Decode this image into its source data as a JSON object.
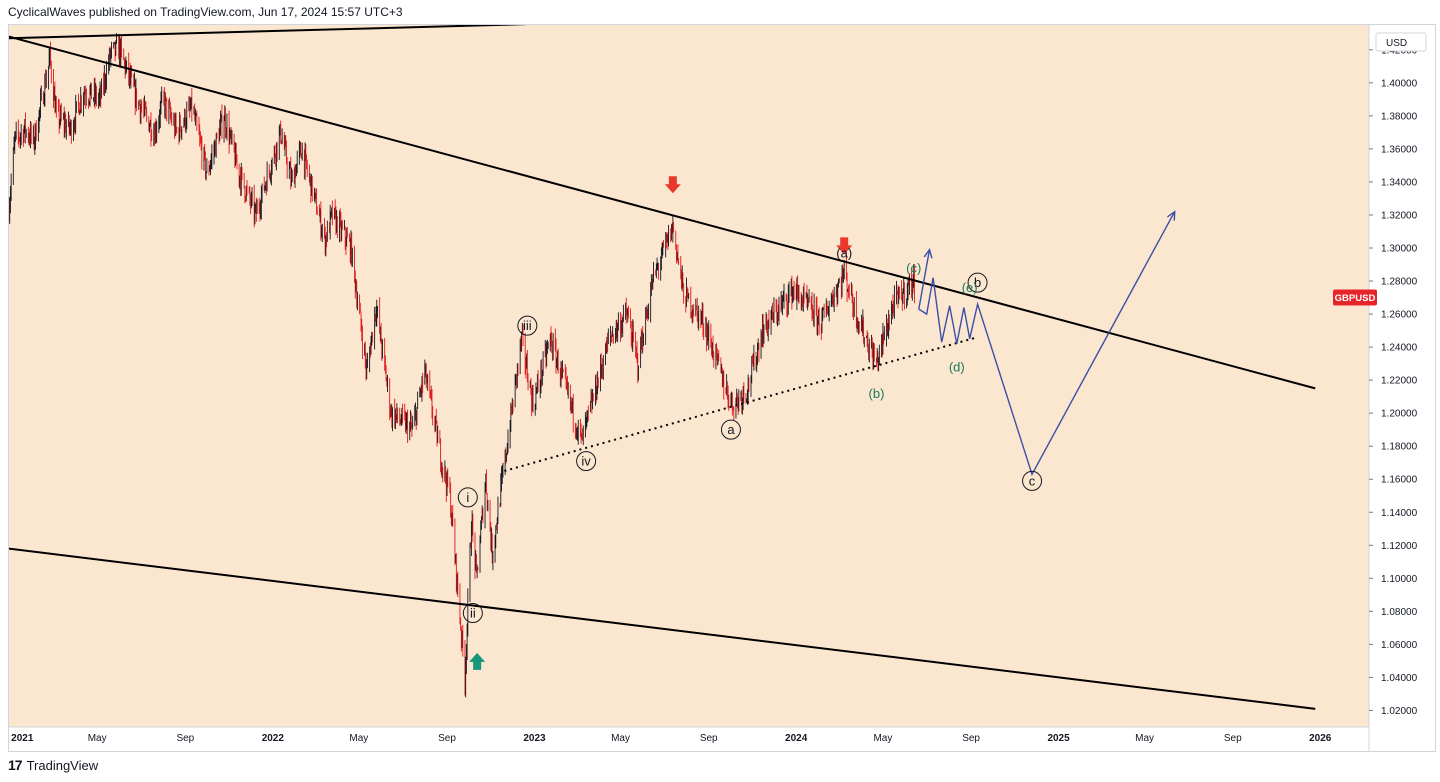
{
  "header": {
    "text": "CyclicalWaves published on TradingView.com, Jun 17, 2024 15:57 UTC+3"
  },
  "footer": {
    "logo": "17",
    "brand": "TradingView"
  },
  "colors": {
    "background": "#fbe6cf",
    "up_candle": "#131722",
    "down_candle": "#e0191b",
    "trendline": "#000000",
    "projection": "#3b4fa8",
    "arrow_down": "#e8392b",
    "arrow_up": "#14977a",
    "green_label": "#1b7a5a",
    "symbol_badge": "#e8242b"
  },
  "chart_data": {
    "type": "candlestick",
    "symbol": "GBPUSD",
    "currency": "USD",
    "ylim": [
      1.01,
      1.435
    ],
    "xlim": [
      "2020-12-29",
      "2026-03-10"
    ],
    "y_ticks": [
      "1.42000",
      "1.40000",
      "1.38000",
      "1.36000",
      "1.34000",
      "1.32000",
      "1.30000",
      "1.28000",
      "1.26000",
      "1.24000",
      "1.22000",
      "1.20000",
      "1.18000",
      "1.16000",
      "1.14000",
      "1.12000",
      "1.10000",
      "1.08000",
      "1.06000",
      "1.04000",
      "1.02000"
    ],
    "x_ticks": [
      {
        "label": "2021",
        "date": "2021-01-01",
        "year": true
      },
      {
        "label": "May",
        "date": "2021-05-01",
        "year": false
      },
      {
        "label": "Sep",
        "date": "2021-09-01",
        "year": false
      },
      {
        "label": "2022",
        "date": "2022-01-01",
        "year": true
      },
      {
        "label": "May",
        "date": "2022-05-01",
        "year": false
      },
      {
        "label": "Sep",
        "date": "2022-09-01",
        "year": false
      },
      {
        "label": "2023",
        "date": "2023-01-01",
        "year": true
      },
      {
        "label": "May",
        "date": "2023-05-01",
        "year": false
      },
      {
        "label": "Sep",
        "date": "2023-09-01",
        "year": false
      },
      {
        "label": "2024",
        "date": "2024-01-01",
        "year": true
      },
      {
        "label": "May",
        "date": "2024-05-01",
        "year": false
      },
      {
        "label": "Sep",
        "date": "2024-09-01",
        "year": false
      },
      {
        "label": "2025",
        "date": "2025-01-01",
        "year": true
      },
      {
        "label": "May",
        "date": "2025-05-01",
        "year": false
      },
      {
        "label": "Sep",
        "date": "2025-09-01",
        "year": false
      },
      {
        "label": "2026",
        "date": "2026-01-01",
        "year": true
      }
    ],
    "price_path": [
      [
        "2020-12-29",
        1.325
      ],
      [
        "2021-01-06",
        1.365
      ],
      [
        "2021-01-20",
        1.372
      ],
      [
        "2021-02-02",
        1.365
      ],
      [
        "2021-02-24",
        1.415
      ],
      [
        "2021-03-05",
        1.38
      ],
      [
        "2021-03-25",
        1.372
      ],
      [
        "2021-04-12",
        1.395
      ],
      [
        "2021-05-05",
        1.39
      ],
      [
        "2021-05-20",
        1.418
      ],
      [
        "2021-06-01",
        1.42
      ],
      [
        "2021-06-25",
        1.39
      ],
      [
        "2021-07-20",
        1.37
      ],
      [
        "2021-08-01",
        1.39
      ],
      [
        "2021-08-20",
        1.37
      ],
      [
        "2021-09-10",
        1.385
      ],
      [
        "2021-10-01",
        1.345
      ],
      [
        "2021-10-25",
        1.38
      ],
      [
        "2021-11-15",
        1.345
      ],
      [
        "2021-12-08",
        1.32
      ],
      [
        "2022-01-12",
        1.37
      ],
      [
        "2022-01-27",
        1.34
      ],
      [
        "2022-02-10",
        1.36
      ],
      [
        "2022-03-15",
        1.305
      ],
      [
        "2022-03-25",
        1.32
      ],
      [
        "2022-04-20",
        1.3
      ],
      [
        "2022-05-12",
        1.225
      ],
      [
        "2022-05-25",
        1.265
      ],
      [
        "2022-06-15",
        1.2
      ],
      [
        "2022-07-15",
        1.19
      ],
      [
        "2022-08-01",
        1.225
      ],
      [
        "2022-08-25",
        1.17
      ],
      [
        "2022-09-05",
        1.15
      ],
      [
        "2022-09-26",
        1.04
      ],
      [
        "2022-10-05",
        1.135
      ],
      [
        "2022-10-12",
        1.1
      ],
      [
        "2022-10-25",
        1.16
      ],
      [
        "2022-11-03",
        1.115
      ],
      [
        "2022-12-14",
        1.245
      ],
      [
        "2022-12-30",
        1.205
      ],
      [
        "2023-01-23",
        1.245
      ],
      [
        "2023-03-08",
        1.183
      ],
      [
        "2023-04-15",
        1.245
      ],
      [
        "2023-05-10",
        1.26
      ],
      [
        "2023-05-25",
        1.23
      ],
      [
        "2023-06-15",
        1.28
      ],
      [
        "2023-07-13",
        1.313
      ],
      [
        "2023-07-28",
        1.272
      ],
      [
        "2023-08-25",
        1.255
      ],
      [
        "2023-09-25",
        1.215
      ],
      [
        "2023-10-05",
        1.205
      ],
      [
        "2023-10-25",
        1.215
      ],
      [
        "2023-11-15",
        1.25
      ],
      [
        "2023-12-28",
        1.275
      ],
      [
        "2024-02-05",
        1.255
      ],
      [
        "2024-02-15",
        1.265
      ],
      [
        "2024-03-08",
        1.285
      ],
      [
        "2024-03-25",
        1.26
      ],
      [
        "2024-04-22",
        1.23
      ],
      [
        "2024-05-15",
        1.265
      ],
      [
        "2024-06-12",
        1.28
      ],
      [
        "2024-06-17",
        1.27
      ]
    ],
    "trendlines": [
      {
        "style": "solid",
        "from": [
          "2020-12-29",
          1.427
        ],
        "to": [
          "2022-12-20",
          1.4355
        ]
      },
      {
        "style": "solid",
        "from": [
          "2020-12-29",
          1.428
        ],
        "to": [
          "2025-12-25",
          1.215
        ]
      },
      {
        "style": "solid",
        "from": [
          "2020-12-29",
          1.118
        ],
        "to": [
          "2025-12-25",
          1.021
        ]
      },
      {
        "style": "dotted",
        "from": [
          "2022-11-20",
          1.165
        ],
        "to": [
          "2024-09-10",
          1.246
        ]
      }
    ],
    "projection": [
      [
        "2024-06-20",
        1.263
      ],
      [
        "2024-07-01",
        1.26
      ],
      [
        "2024-07-10",
        1.282
      ],
      [
        "2024-07-22",
        1.243
      ],
      [
        "2024-08-02",
        1.265
      ],
      [
        "2024-08-12",
        1.242
      ],
      [
        "2024-08-22",
        1.264
      ],
      [
        "2024-08-30",
        1.245
      ],
      [
        "2024-09-10",
        1.266
      ],
      [
        "2024-11-25",
        1.163
      ],
      [
        "2025-06-12",
        1.322
      ]
    ],
    "projection_alt": [
      [
        "2024-06-20",
        1.263
      ],
      [
        "2024-07-05",
        1.299
      ]
    ],
    "arrows": [
      {
        "dir": "down",
        "date": "2021-05-21",
        "price": 1.445
      },
      {
        "dir": "down",
        "date": "2023-07-13",
        "price": 1.338
      },
      {
        "dir": "down",
        "date": "2024-03-08",
        "price": 1.301
      },
      {
        "dir": "up",
        "date": "2022-10-13",
        "price": 1.05
      }
    ],
    "wave_labels": [
      {
        "text": "i",
        "date": "2022-09-30",
        "price": 1.149,
        "circled": true,
        "color": "#131722"
      },
      {
        "text": "ii",
        "date": "2022-10-07",
        "price": 1.079,
        "circled": true,
        "color": "#131722"
      },
      {
        "text": "iii",
        "date": "2022-12-22",
        "price": 1.253,
        "circled": true,
        "color": "#131722"
      },
      {
        "text": "iv",
        "date": "2023-03-14",
        "price": 1.171,
        "circled": true,
        "color": "#131722"
      },
      {
        "text": "a",
        "date": "2023-10-02",
        "price": 1.19,
        "circled": true,
        "color": "#131722"
      },
      {
        "text": "c",
        "date": "2024-11-25",
        "price": 1.159,
        "circled": true,
        "color": "#131722"
      },
      {
        "text": "b",
        "date": "2024-09-10",
        "price": 1.279,
        "circled": true,
        "color": "#131722"
      },
      {
        "text": "(a)",
        "date": "2024-03-08",
        "price": 1.297,
        "circled": false,
        "color": "#131722"
      },
      {
        "text": "(c)",
        "date": "2024-06-13",
        "price": 1.288,
        "circled": false,
        "color": "#1b7a5a"
      },
      {
        "text": "(b)",
        "date": "2024-04-22",
        "price": 1.212,
        "circled": false,
        "color": "#1b7a5a"
      },
      {
        "text": "(d)",
        "date": "2024-08-12",
        "price": 1.228,
        "circled": false,
        "color": "#1b7a5a"
      },
      {
        "text": "(e)",
        "date": "2024-08-30",
        "price": 1.276,
        "circled": false,
        "color": "#1b7a5a"
      }
    ]
  }
}
